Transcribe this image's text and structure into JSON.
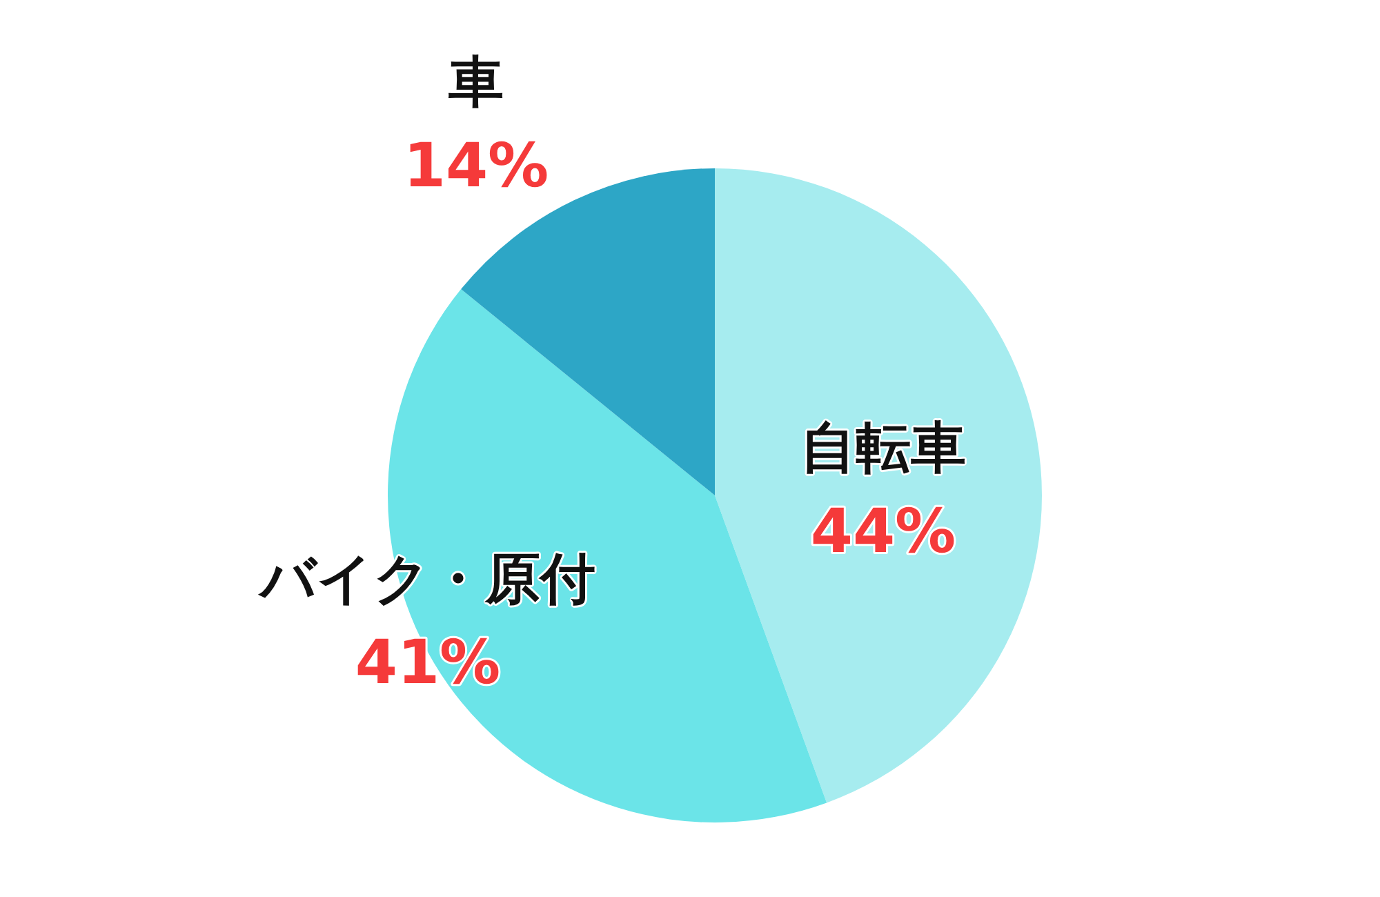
{
  "chart_data": {
    "type": "pie",
    "categories": [
      "自転車",
      "バイク・原付",
      "車"
    ],
    "values": [
      44,
      41,
      14
    ],
    "value_labels": [
      "44%",
      "41%",
      "14%"
    ],
    "colors": [
      "#a6ecef",
      "#6be4e8",
      "#2da6c6"
    ]
  }
}
